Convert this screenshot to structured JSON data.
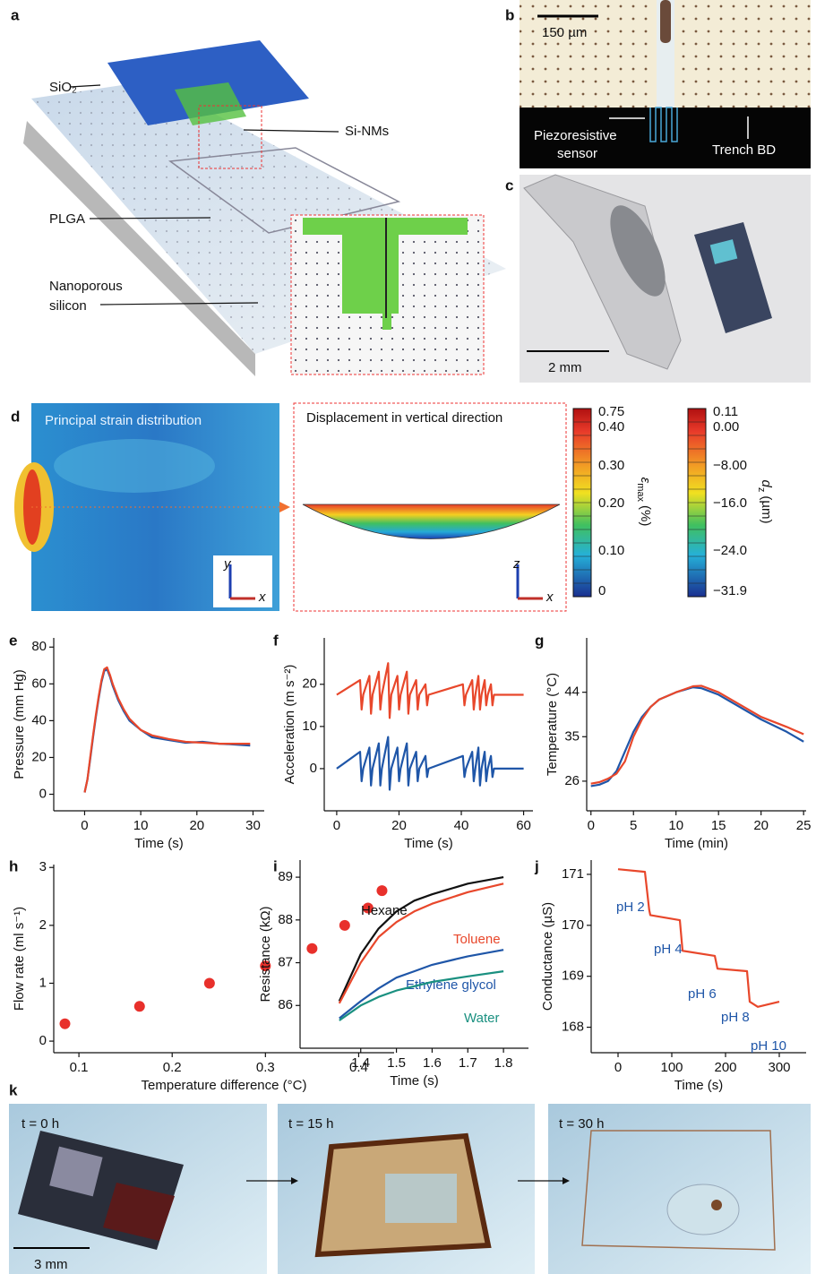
{
  "figure": {
    "a": {
      "letter": "a",
      "sio2": "SiO₂",
      "sinms": "Si-NMs",
      "plga": "PLGA",
      "nanoporous": "Nanoporous",
      "silicon": "silicon"
    },
    "b": {
      "letter": "b",
      "scale": "150 µm",
      "sensor": [
        "Piezoresistive",
        "sensor"
      ],
      "trench": "Trench BD"
    },
    "c": {
      "letter": "c",
      "scale": "2 mm"
    },
    "d": {
      "letter": "d",
      "left_title": "Principal strain distribution",
      "right_title": "Displacement in vertical direction",
      "axes_left": [
        "y",
        "x"
      ],
      "axes_right": [
        "z",
        "x"
      ],
      "cbar1": {
        "ticks": [
          "0.75",
          "0.40",
          "0.30",
          "0.20",
          "0.10",
          "0"
        ],
        "label": "ε",
        "sub": "max",
        "unit": "(%)"
      },
      "cbar2": {
        "ticks": [
          "0.11",
          "0.00",
          "−8.00",
          "−16.0",
          "−24.0",
          "−31.9"
        ],
        "label": "d",
        "sub": "z",
        "unit": "(µm)"
      }
    },
    "k": {
      "letter": "k",
      "times": [
        "t = 0 h",
        "t = 15 h",
        "t = 30 h"
      ],
      "scale": "3 mm"
    }
  },
  "chart_data": [
    {
      "type": "line",
      "panel": "e",
      "xlabel": "Time (s)",
      "ylabel": "Pressure (mm Hg)",
      "xlim": [
        -5.5,
        32
      ],
      "ylim": [
        -9,
        85
      ],
      "xticks": [
        0,
        10,
        20,
        30
      ],
      "yticks": [
        0,
        20,
        40,
        60,
        80
      ],
      "x": [
        0,
        0.5,
        1,
        1.5,
        2,
        2.5,
        3,
        3.5,
        4,
        4.5,
        5,
        6,
        7,
        8,
        10,
        12,
        15,
        18,
        21,
        24,
        27,
        29.5
      ],
      "series": [
        {
          "color": "#1f56a8",
          "values": [
            1,
            8,
            19,
            31,
            42,
            52,
            61,
            67,
            68,
            64,
            59,
            51,
            45,
            40,
            35,
            31,
            29.5,
            28,
            28.5,
            27.5,
            27,
            26.5
          ]
        },
        {
          "color": "#e8472b",
          "values": [
            1,
            8,
            20,
            32,
            43,
            53,
            62,
            68,
            69,
            65,
            60,
            52,
            46,
            41,
            35,
            32,
            30,
            28.5,
            28,
            27.5,
            27.5,
            27.5
          ]
        }
      ]
    },
    {
      "type": "line",
      "panel": "f",
      "xlabel": "Time (s)",
      "ylabel": "Acceleration (m s⁻²)",
      "xlim": [
        -4,
        63
      ],
      "ylim": [
        -10,
        31
      ],
      "xticks": [
        0,
        20,
        40,
        60
      ],
      "yticks": [
        0,
        10,
        20
      ],
      "x": [
        0,
        7.5,
        8,
        8.5,
        10.5,
        11,
        11.5,
        13.5,
        14,
        14.5,
        16.5,
        17,
        17.5,
        19.5,
        20,
        20.5,
        22.5,
        23,
        23.5,
        25.5,
        26,
        26.5,
        28.5,
        29,
        29.5,
        40.5,
        41,
        41.5,
        43.5,
        44,
        44.5,
        45.5,
        46,
        46.5,
        47.5,
        48,
        48.5,
        49.5,
        50,
        50.5,
        60
      ],
      "series": [
        {
          "color": "#e8472b",
          "values": [
            17.5,
            21,
            14,
            17.5,
            22,
            13,
            17.5,
            23,
            14,
            17.5,
            25,
            12,
            17.5,
            22,
            14,
            17.5,
            23,
            13,
            17.5,
            21,
            14,
            17.5,
            20,
            15,
            17.5,
            20,
            15,
            17.5,
            21,
            14,
            17.5,
            22,
            14,
            17.5,
            21,
            15,
            17.5,
            20,
            15,
            17.5,
            17.5
          ]
        },
        {
          "color": "#1f56a8",
          "values": [
            0,
            4,
            -3,
            0,
            5,
            -4,
            0,
            6,
            -4,
            0,
            7.5,
            -5,
            0,
            5,
            -3,
            0,
            6,
            -4,
            0,
            4,
            -3,
            0,
            3,
            -2,
            0,
            3,
            -2,
            0,
            4,
            -3,
            0,
            5,
            -4,
            0,
            4,
            -3,
            0,
            3,
            -2,
            0,
            0
          ]
        }
      ]
    },
    {
      "type": "line",
      "panel": "g",
      "xlabel": "Time (min)",
      "ylabel": "Temperature (°C)",
      "xlim": [
        -0.5,
        25.3
      ],
      "ylim": [
        20,
        55
      ],
      "xticks": [
        0,
        5,
        10,
        15,
        20,
        25
      ],
      "yticks": [
        26,
        35,
        44
      ],
      "x": [
        0,
        1,
        2,
        3,
        4,
        5,
        6,
        7,
        8,
        10,
        12,
        13,
        15,
        17,
        20,
        23,
        25
      ],
      "series": [
        {
          "color": "#1f56a8",
          "values": [
            25,
            25.3,
            26,
            28,
            32,
            36,
            39,
            41,
            42.5,
            44,
            45,
            44.8,
            43.5,
            41.5,
            38.5,
            36,
            34
          ]
        },
        {
          "color": "#e8472b",
          "values": [
            25.5,
            25.8,
            26.5,
            27.5,
            30,
            35,
            38.5,
            41,
            42.5,
            44,
            45.2,
            45.3,
            44,
            42,
            39,
            37,
            35.5
          ]
        }
      ]
    },
    {
      "type": "scatter",
      "panel": "h",
      "xlabel": "Temperature difference (°C)",
      "ylabel": "Flow rate (ml s⁻¹)",
      "xlim": [
        0.073,
        0.438
      ],
      "ylim": [
        -0.2,
        3.05
      ],
      "xticks": [
        0.1,
        0.2,
        0.3,
        0.4
      ],
      "yticks": [
        0,
        1,
        2,
        3
      ],
      "color": "#e8302b",
      "x": [
        0.085,
        0.165,
        0.24,
        0.3,
        0.35,
        0.385,
        0.41,
        0.425
      ],
      "values": [
        0.3,
        0.6,
        1.0,
        1.3,
        1.6,
        2.0,
        2.3,
        2.6
      ]
    },
    {
      "type": "line",
      "panel": "i",
      "xlabel": "Time (s)",
      "ylabel": "Resistance (kΩ)",
      "xlim": [
        1.23,
        1.87
      ],
      "ylim": [
        85,
        89.4
      ],
      "xticks": [
        1.4,
        1.5,
        1.6,
        1.7,
        1.8
      ],
      "yticks": [
        86,
        87,
        88,
        89
      ],
      "x": [
        1.34,
        1.4,
        1.45,
        1.5,
        1.55,
        1.6,
        1.7,
        1.8
      ],
      "series": [
        {
          "name": "Hexane",
          "color": "#111111",
          "values": [
            86.1,
            87.2,
            87.8,
            88.2,
            88.45,
            88.6,
            88.85,
            89
          ]
        },
        {
          "name": "Toluene",
          "color": "#e8472b",
          "values": [
            86.05,
            87.0,
            87.6,
            87.95,
            88.2,
            88.38,
            88.65,
            88.85
          ]
        },
        {
          "name": "Ethylene glycol",
          "color": "#1f56a8",
          "values": [
            85.7,
            86.1,
            86.4,
            86.65,
            86.8,
            86.95,
            87.15,
            87.3
          ]
        },
        {
          "name": "Water",
          "color": "#1a9080",
          "values": [
            85.65,
            86.0,
            86.2,
            86.35,
            86.45,
            86.55,
            86.68,
            86.8
          ]
        }
      ]
    },
    {
      "type": "line",
      "panel": "j",
      "xlabel": "Time (s)",
      "ylabel": "Conductance (µS)",
      "xlim": [
        -50,
        350
      ],
      "ylim": [
        167.5,
        171.28
      ],
      "xticks": [
        0,
        100,
        200,
        300
      ],
      "yticks": [
        168,
        169,
        170,
        171
      ],
      "annotations": [
        "pH 2",
        "pH 4",
        "pH 6",
        "pH 8",
        "pH 10"
      ],
      "annotation_color": "#1f56a8",
      "x": [
        0,
        50,
        58,
        60,
        115,
        120,
        180,
        185,
        240,
        245,
        260,
        300
      ],
      "series": [
        {
          "color": "#e8472b",
          "values": [
            171.1,
            171.05,
            170.3,
            170.2,
            170.1,
            169.5,
            169.4,
            169.15,
            169.1,
            168.5,
            168.4,
            168.5
          ]
        }
      ]
    }
  ]
}
